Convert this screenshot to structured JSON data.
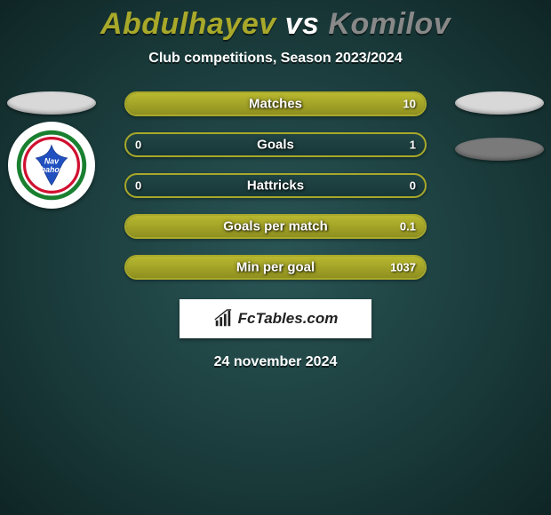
{
  "player1": {
    "name": "Abdulhayev",
    "color": "#a8a82a"
  },
  "player2": {
    "name": "Komilov",
    "color": "#888888"
  },
  "vs_label": "vs",
  "subtitle": "Club competitions, Season 2023/2024",
  "stats": [
    {
      "label": "Matches",
      "v1": "",
      "v2": "10",
      "fill1_pct": 50,
      "fill2_pct": 50
    },
    {
      "label": "Goals",
      "v1": "0",
      "v2": "1",
      "fill1_pct": 0,
      "fill2_pct": 0
    },
    {
      "label": "Hattricks",
      "v1": "0",
      "v2": "0",
      "fill1_pct": 0,
      "fill2_pct": 0
    },
    {
      "label": "Goals per match",
      "v1": "",
      "v2": "0.1",
      "fill1_pct": 50,
      "fill2_pct": 50
    },
    {
      "label": "Min per goal",
      "v1": "",
      "v2": "1037",
      "fill1_pct": 50,
      "fill2_pct": 50
    }
  ],
  "brand": "FcTables.com",
  "date": "24 november 2024",
  "colors": {
    "accent": "#a8a82a",
    "bar_bg": "#1e4040",
    "page_bg_center": "#2a5555",
    "page_bg_edge": "#0f2525",
    "p1_ellipse": "#d8d8d8",
    "p2_ellipse": "#7a7a7a"
  }
}
